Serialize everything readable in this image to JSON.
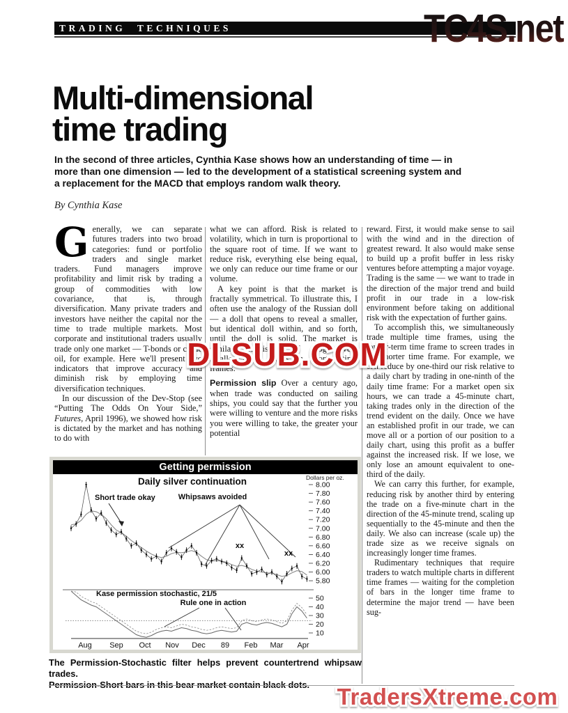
{
  "masthead": {
    "section": "TRADING TECHNIQUES",
    "logo": "TC4S.net",
    "logo_top_color": "#111111",
    "logo_bottom_color": "#6e241c"
  },
  "article": {
    "title_line1": "Multi-dimensional",
    "title_line2": "time trading",
    "standfirst": "In the second of three articles, Cynthia Kase shows how an understanding of time — in more than one dimension — led to the development of a statistical screening system and a replacement for the MACD that employs random walk theory.",
    "byline": "By Cynthia Kase",
    "col1": {
      "dropcap": "G",
      "p1": "enerally, we can separate futures traders into two broad categories: fund or portfolio traders and single market traders. Fund managers improve profitability and limit risk by trading a group of commodities with low covariance, that is, through diversification. Many private traders and investors have neither the capital nor the time to trade multiple markets. Most corporate and institutional traders usually trade only one market — T-bonds or crude oil, for example. Here we'll present two indicators that improve accuracy and diminish risk by employing time diversification techniques.",
      "p2_a": "In our discussion of the Dev-Stop (see “Putting The Odds On Your Side,” ",
      "p2_italic": "Futures",
      "p2_b": ", April 1996), we showed how risk is dictated by the market and has nothing to do with"
    },
    "col2": {
      "p1": "what we can afford. Risk is related to volatility, which in turn is proportional to the square root of time. If we want to reduce risk, everything else being equal, we only can reduce our time frame or our volume.",
      "p2": "A key point is that the market is fractally symmetrical. To illustrate this, I often use the analogy of the Russian doll — a doll that opens to reveal a smaller, but identical doll within, and so forth, until the doll is solid. The market is similar, consisting of progressively smaller price waves in shorter time frames.",
      "p3_lead": "Permission slip",
      "p3": " Over a century ago, when trade was conducted on sailing ships, you could say that the further you were willing to venture and the more risks you were willing to take, the greater your potential"
    },
    "col3": {
      "p1": "reward. First, it would make sense to sail with the wind and in the direction of greatest reward. It also would make sense to build up a profit buffer in less risky ventures before attempting a major voyage. Trading is the same — we want to trade in the direction of the major trend and build profit in our trade in a low-risk environment before taking on additional risk with the expectation of further gains.",
      "p2": "To accomplish this, we simultaneously trade multiple time frames, using the longer-term time frame to screen trades in the shorter time frame. For example, we can reduce by one-third our risk relative to a daily chart by trading in one-ninth of the daily time frame: For a market open six hours, we can trade a 45-minute chart, taking trades only in the direction of the trend evident on the daily. Once we have an established profit in our trade, we can move all or a portion of our position to a daily chart, using this profit as a buffer against the increased risk. If we lose, we only lose an amount equivalent to one-third of the daily.",
      "p3": "We can carry this further, for example, reducing risk by another third by entering the trade on a five-minute chart in the direction of the 45-minute trend, scaling up sequentially to the 45-minute and then the daily. We also can increase (scale up) the trade size as we receive signals on increasingly longer time frames.",
      "p4": "Rudimentary techniques that require traders to watch multiple charts in different time frames — waiting for the completion of bars in the longer time frame to determine the major trend — have been sug-"
    }
  },
  "figure": {
    "caption_line1": "The Permission-Stochastic filter helps prevent countertrend whipsaw trades.",
    "caption_line2": "Permission-Short bars in this bear market contain black dots."
  },
  "watermarks": {
    "center": "DLSUB.COM",
    "center_color": "#c41b1b",
    "bottom": "TradersXtreme.com",
    "bottom_color": "#d25050"
  },
  "chart_data": {
    "type": "line",
    "title": "Getting permission",
    "subtitle": "Daily silver continuation",
    "unit_label": "Dollars per oz.",
    "x_categories": [
      "Aug",
      "Sep",
      "Oct",
      "Nov",
      "Dec",
      "89",
      "Feb",
      "Mar",
      "Apr"
    ],
    "price_ticks": [
      8.0,
      7.8,
      7.6,
      7.4,
      7.2,
      7.0,
      6.8,
      6.6,
      6.4,
      6.2,
      6.0,
      5.8
    ],
    "ylim": [
      5.7,
      8.1
    ],
    "grid": false,
    "series": [
      {
        "name": "daily silver bars",
        "values": [
          7.0,
          7.1,
          7.32,
          8.0,
          7.42,
          7.22,
          7.35,
          7.12,
          6.96,
          6.86,
          6.92,
          6.76,
          6.6,
          6.66,
          6.5,
          6.4,
          6.3,
          6.36,
          6.24,
          6.44,
          6.54,
          6.46,
          6.34,
          6.5,
          6.6,
          6.44,
          6.18,
          6.14,
          6.26,
          6.3,
          6.24,
          6.2,
          6.1,
          6.04,
          6.32,
          6.14,
          5.96,
          6.0,
          6.06,
          5.94,
          6.0,
          5.9,
          5.78,
          5.96,
          6.08,
          6.14,
          5.9,
          5.84
        ]
      },
      {
        "name": "moving average",
        "values": [
          7.08,
          7.1,
          7.18,
          7.32,
          7.4,
          7.38,
          7.32,
          7.22,
          7.08,
          6.96,
          6.9,
          6.82,
          6.72,
          6.64,
          6.56,
          6.48,
          6.41,
          6.36,
          6.33,
          6.36,
          6.42,
          6.45,
          6.44,
          6.46,
          6.49,
          6.45,
          6.36,
          6.28,
          6.25,
          6.26,
          6.25,
          6.22,
          6.17,
          6.13,
          6.15,
          6.12,
          6.06,
          6.02,
          6.0,
          5.98,
          5.97,
          5.94,
          5.9,
          5.92,
          5.98,
          6.03,
          6.01,
          5.93
        ]
      }
    ],
    "annotations": {
      "short_trade": "Short trade okay",
      "whipsaws": "Whipsaws avoided",
      "xx1": "xx",
      "xx2": "xx"
    },
    "stochastic": {
      "label": "Kase permission stochastic, 21/5",
      "annotation": "Rule one in action",
      "ticks": [
        50,
        40,
        30,
        20,
        10
      ],
      "ref_line": 24,
      "values": [
        58,
        53,
        48,
        45,
        42,
        40,
        36,
        32,
        28,
        24,
        20,
        16,
        12,
        8,
        6,
        5,
        7,
        10,
        12,
        13,
        12,
        14,
        16,
        15,
        13,
        12,
        10,
        9,
        10,
        12,
        13,
        12,
        11,
        12,
        20,
        22,
        20,
        19,
        21,
        22,
        21,
        19,
        17,
        20,
        32,
        40,
        35,
        27
      ]
    }
  }
}
